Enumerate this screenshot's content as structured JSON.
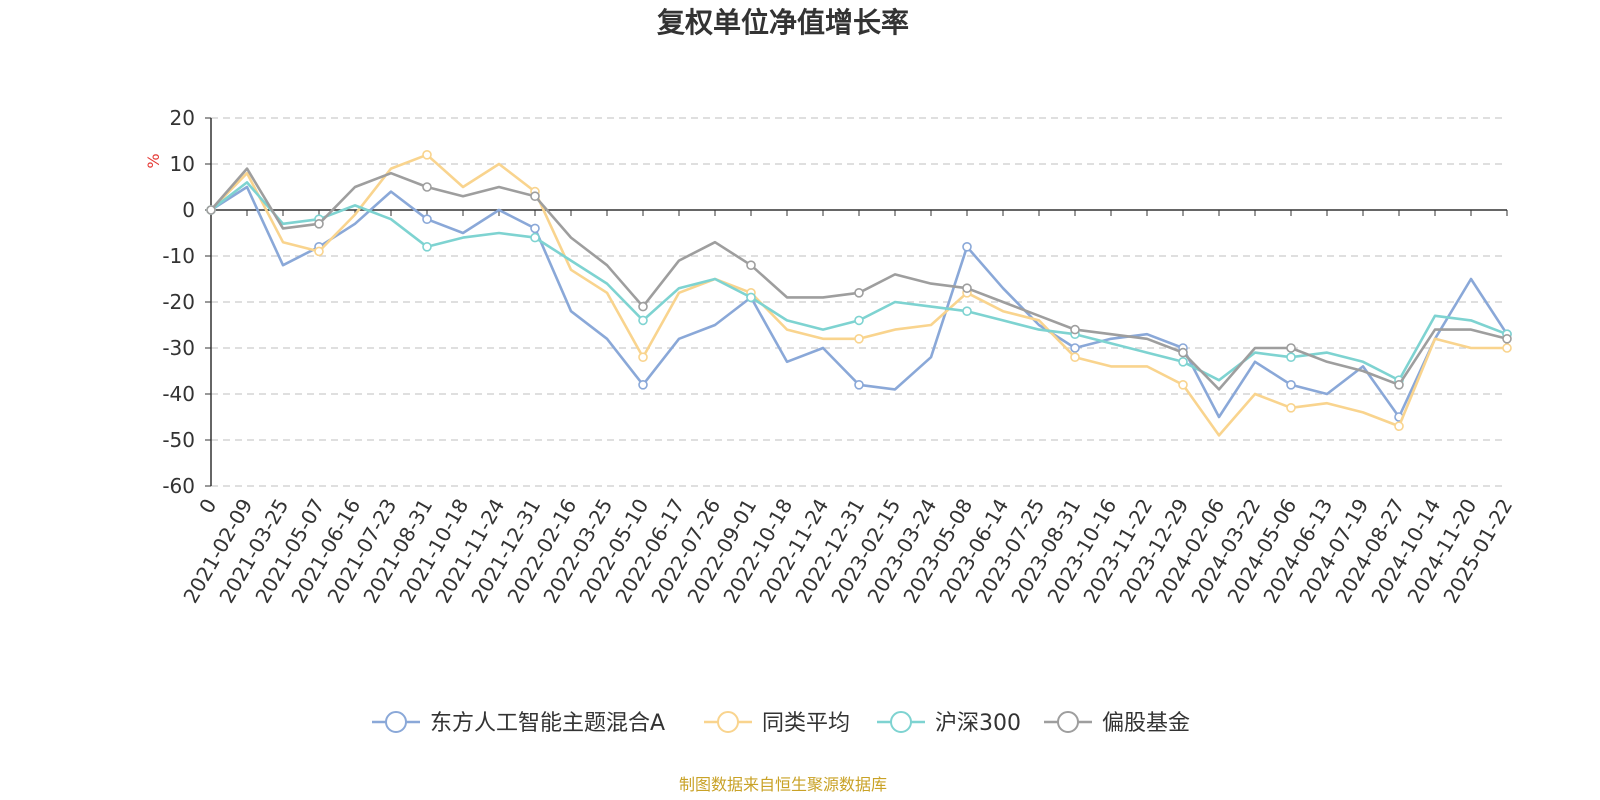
{
  "chart_data": {
    "type": "line",
    "title": "复权单位净值增长率",
    "ylabel": "%",
    "ylim": [
      -60,
      20
    ],
    "yticks": [
      20,
      10,
      0,
      -10,
      -20,
      -30,
      -40,
      -50,
      -60
    ],
    "grid": true,
    "legend_position": "bottom",
    "source": "制图数据来自恒生聚源数据库",
    "x": [
      "0",
      "2021-02-09",
      "2021-03-25",
      "2021-05-07",
      "2021-06-16",
      "2021-07-23",
      "2021-08-31",
      "2021-10-18",
      "2021-11-24",
      "2021-12-31",
      "2022-02-16",
      "2022-03-25",
      "2022-05-10",
      "2022-06-17",
      "2022-07-26",
      "2022-09-01",
      "2022-10-18",
      "2022-11-24",
      "2022-12-31",
      "2023-02-15",
      "2023-03-24",
      "2023-05-08",
      "2023-06-14",
      "2023-07-25",
      "2023-08-31",
      "2023-10-16",
      "2023-11-22",
      "2023-12-29",
      "2024-02-06",
      "2024-03-22",
      "2024-05-06",
      "2024-06-13",
      "2024-07-19",
      "2024-08-27",
      "2024-10-14",
      "2024-11-20",
      "2025-01-22"
    ],
    "series": [
      {
        "name": "东方人工智能主题混合A",
        "color": "#8aa8d8",
        "values": [
          0,
          5,
          -12,
          -8,
          -3,
          4,
          -2,
          -5,
          0,
          -4,
          -22,
          -28,
          -38,
          -28,
          -25,
          -19,
          -33,
          -30,
          -38,
          -39,
          -32,
          -8,
          -17,
          -25,
          -30,
          -28,
          -27,
          -30,
          -45,
          -33,
          -38,
          -40,
          -34,
          -45,
          -28,
          -15,
          -27
        ]
      },
      {
        "name": "同类平均",
        "color": "#f9d48e",
        "values": [
          0,
          8,
          -7,
          -9,
          -1,
          9,
          12,
          5,
          10,
          4,
          -13,
          -18,
          -32,
          -18,
          -15,
          -18,
          -26,
          -28,
          -28,
          -26,
          -25,
          -18,
          -22,
          -24,
          -32,
          -34,
          -34,
          -38,
          -49,
          -40,
          -43,
          -42,
          -44,
          -47,
          -28,
          -30,
          -30
        ]
      },
      {
        "name": "沪深300",
        "color": "#7ed3d1",
        "values": [
          0,
          6,
          -3,
          -2,
          1,
          -2,
          -8,
          -6,
          -5,
          -6,
          -11,
          -16,
          -24,
          -17,
          -15,
          -19,
          -24,
          -26,
          -24,
          -20,
          -21,
          -22,
          -24,
          -26,
          -27,
          -29,
          -31,
          -33,
          -37,
          -31,
          -32,
          -31,
          -33,
          -37,
          -23,
          -24,
          -27
        ]
      },
      {
        "name": "偏股基金",
        "color": "#9e9e9e",
        "values": [
          0,
          9,
          -4,
          -3,
          5,
          8,
          5,
          3,
          5,
          3,
          -6,
          -12,
          -21,
          -11,
          -7,
          -12,
          -19,
          -19,
          -18,
          -14,
          -16,
          -17,
          -20,
          -23,
          -26,
          -27,
          -28,
          -31,
          -39,
          -30,
          -30,
          -33,
          -35,
          -38,
          -26,
          -26,
          -28
        ]
      }
    ]
  }
}
